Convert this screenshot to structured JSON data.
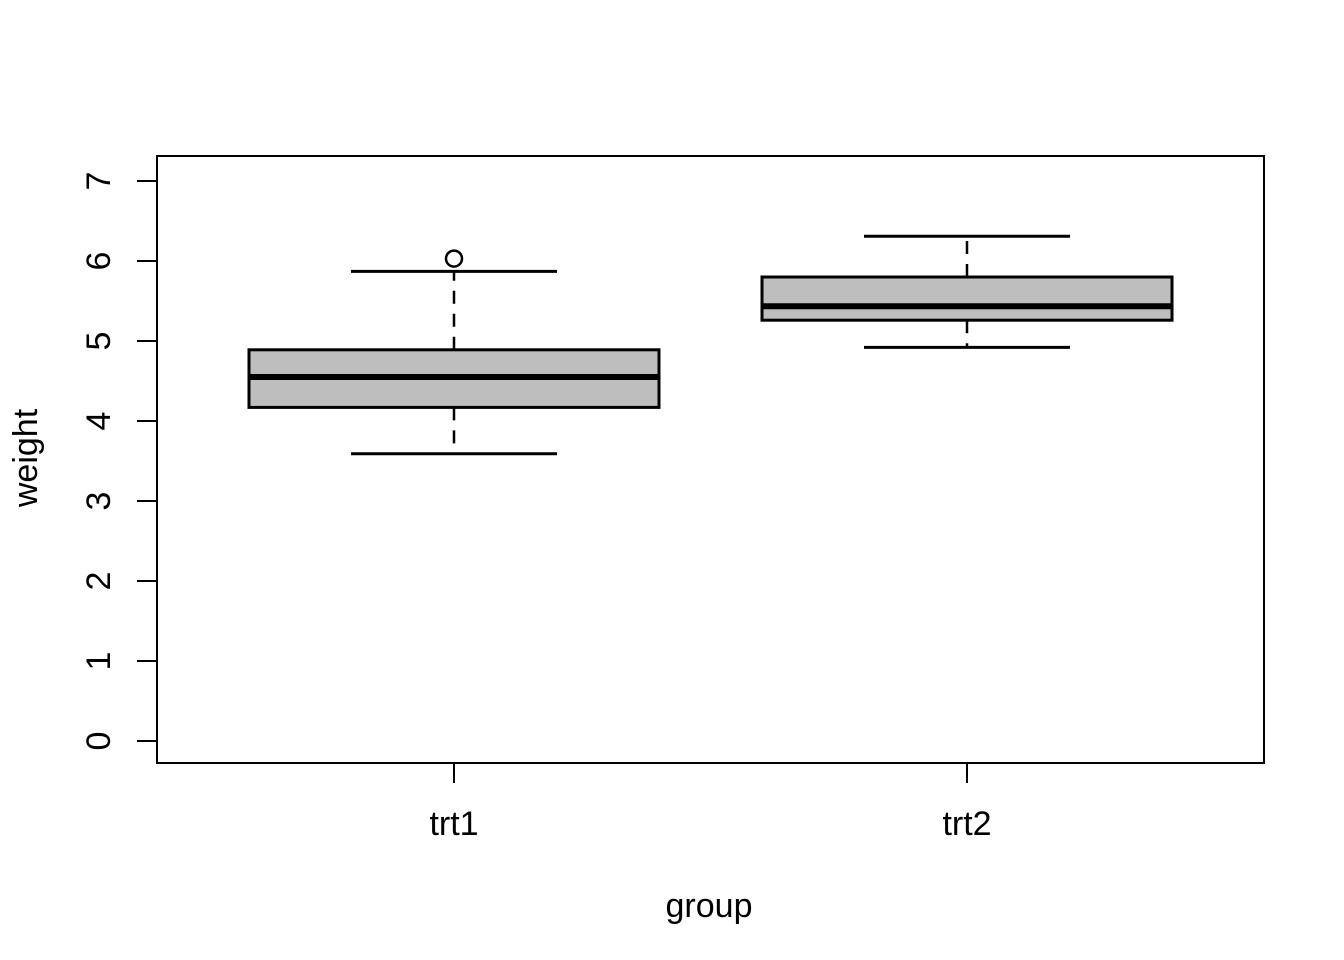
{
  "chart_data": {
    "type": "boxplot",
    "title": "",
    "xlabel": "group",
    "ylabel": "weight",
    "categories": [
      "trt1",
      "trt2"
    ],
    "y_ticks": [
      "0",
      "1",
      "2",
      "3",
      "4",
      "5",
      "6",
      "7"
    ],
    "ylim": [
      0,
      7
    ],
    "grid": false,
    "legend": null,
    "colors": {
      "box_fill": "#BEBEBE",
      "line": "#000000",
      "background": "#FFFFFF"
    },
    "series": [
      {
        "name": "trt1",
        "lower_whisker": 3.59,
        "q1": 4.17,
        "median": 4.55,
        "q3": 4.89,
        "upper_whisker": 5.87,
        "outliers": [
          6.03
        ]
      },
      {
        "name": "trt2",
        "lower_whisker": 4.92,
        "q1": 5.26,
        "median": 5.435,
        "q3": 5.8,
        "upper_whisker": 6.31,
        "outliers": []
      }
    ]
  }
}
